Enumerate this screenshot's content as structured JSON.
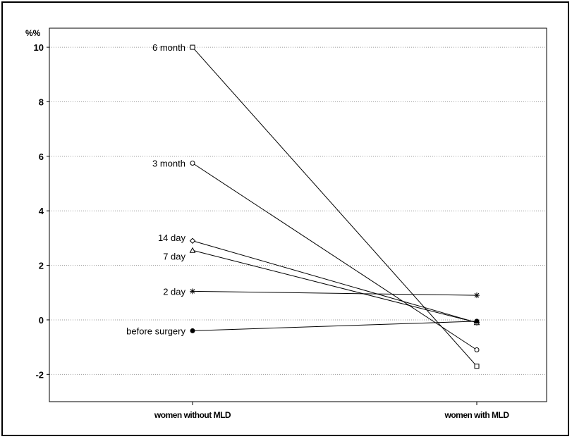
{
  "chart_data": {
    "type": "line",
    "title": "",
    "xlabel": "",
    "ylabel": "%%",
    "categories": [
      "women without MLD",
      "women with MLD"
    ],
    "ylim": [
      -3,
      10.7
    ],
    "yticks": [
      -2,
      0,
      2,
      4,
      6,
      8,
      10
    ],
    "grid": true,
    "series": [
      {
        "name": "6 month",
        "values": [
          10,
          -1.7
        ],
        "marker": "square"
      },
      {
        "name": "3 month",
        "values": [
          5.75,
          -1.1
        ],
        "marker": "circle"
      },
      {
        "name": "14 day",
        "values": [
          2.9,
          -0.1
        ],
        "marker": "diamond"
      },
      {
        "name": "7 day",
        "values": [
          2.55,
          -0.1
        ],
        "marker": "triangle"
      },
      {
        "name": "2 day",
        "values": [
          1.05,
          0.9
        ],
        "marker": "star"
      },
      {
        "name": "before surgery",
        "values": [
          -0.4,
          -0.05
        ],
        "marker": "filled-circle"
      }
    ]
  }
}
